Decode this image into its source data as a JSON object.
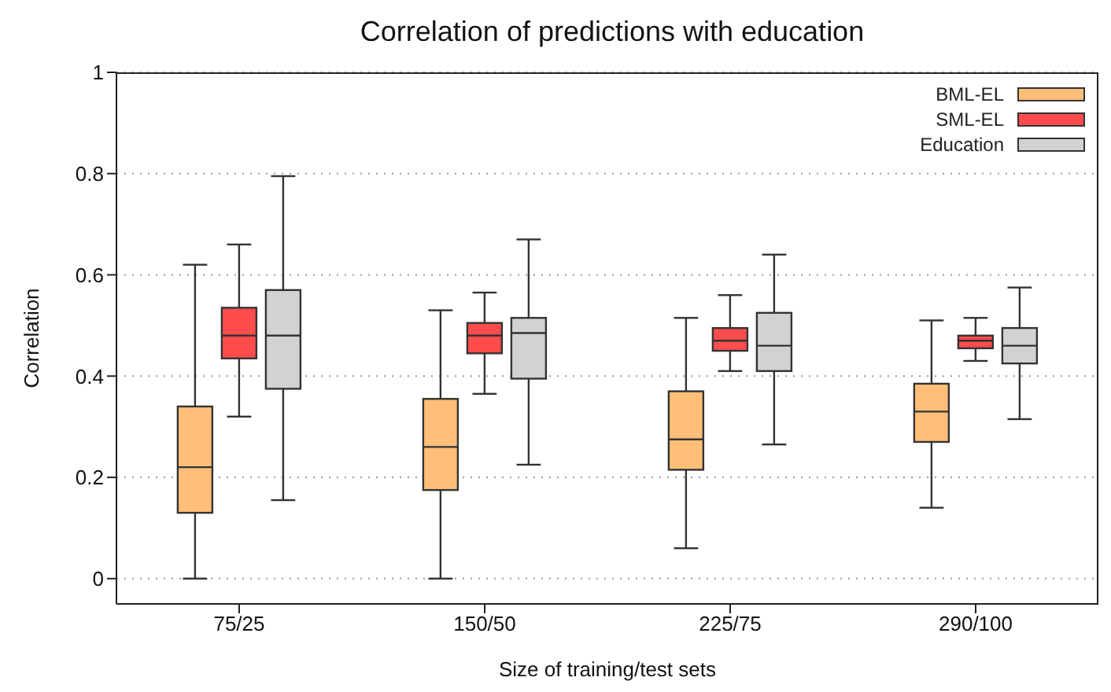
{
  "chart_data": {
    "type": "box",
    "title": "Correlation of predictions with education",
    "xlabel": "Size of training/test sets",
    "ylabel": "Correlation",
    "categories": [
      "75/25",
      "150/50",
      "225/75",
      "290/100"
    ],
    "ylim": [
      -0.05,
      1
    ],
    "yticks": [
      0,
      0.2,
      0.4,
      0.6,
      0.8,
      1
    ],
    "grid": "y",
    "legend": "top right",
    "series": [
      {
        "name": "BML-EL",
        "color": "#ffbf78",
        "boxes": [
          {
            "low": 0,
            "q1": 0.13,
            "median": 0.22,
            "q3": 0.34,
            "high": 0.62
          },
          {
            "low": 0,
            "q1": 0.175,
            "median": 0.26,
            "q3": 0.355,
            "high": 0.53
          },
          {
            "low": 0.06,
            "q1": 0.215,
            "median": 0.275,
            "q3": 0.37,
            "high": 0.515
          },
          {
            "low": 0.14,
            "q1": 0.27,
            "median": 0.33,
            "q3": 0.385,
            "high": 0.51
          }
        ]
      },
      {
        "name": "SML-EL",
        "color": "#ff4c4c",
        "boxes": [
          {
            "low": 0.32,
            "q1": 0.435,
            "median": 0.48,
            "q3": 0.535,
            "high": 0.66
          },
          {
            "low": 0.365,
            "q1": 0.445,
            "median": 0.48,
            "q3": 0.505,
            "high": 0.565
          },
          {
            "low": 0.41,
            "q1": 0.45,
            "median": 0.47,
            "q3": 0.495,
            "high": 0.56
          },
          {
            "low": 0.43,
            "q1": 0.455,
            "median": 0.47,
            "q3": 0.48,
            "high": 0.515
          }
        ]
      },
      {
        "name": "Education",
        "color": "#d2d2d2",
        "boxes": [
          {
            "low": 0.155,
            "q1": 0.375,
            "median": 0.48,
            "q3": 0.57,
            "high": 0.795
          },
          {
            "low": 0.225,
            "q1": 0.395,
            "median": 0.485,
            "q3": 0.515,
            "high": 0.67
          },
          {
            "low": 0.265,
            "q1": 0.41,
            "median": 0.46,
            "q3": 0.525,
            "high": 0.64
          },
          {
            "low": 0.315,
            "q1": 0.425,
            "median": 0.46,
            "q3": 0.495,
            "high": 0.575
          }
        ]
      }
    ]
  }
}
